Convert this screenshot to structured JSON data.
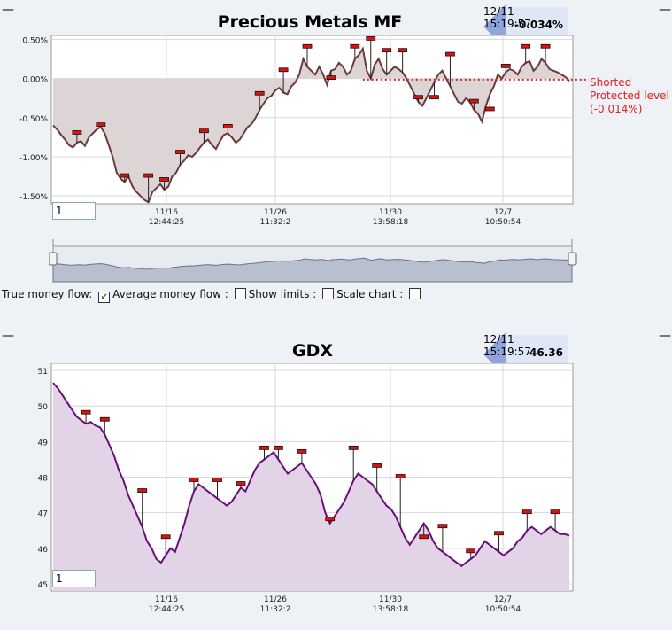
{
  "panels": {
    "mf": {
      "title": "Precious Metals MF",
      "badge_time": "12/11 15:19:57",
      "badge_value": "-0.034%",
      "input_value": "1",
      "annotation": [
        "Shorted",
        "Protected level",
        "(-0.014%)"
      ]
    },
    "gdx": {
      "title": "GDX",
      "badge_time": "12/11 15:19:57",
      "badge_value": "46.36",
      "input_value": "1"
    }
  },
  "controls": {
    "true_money_flow": "True money flow:",
    "average_money_flow": "Average money flow :",
    "show_limits": "Show limits :",
    "scale_chart": "Scale chart :",
    "true_money_flow_checked": true
  },
  "colors": {
    "mf_line": "#6b3a3a",
    "mf_fill": "#ddd5d5",
    "gdx_line": "#6a0d7a",
    "gdx_fill": "#e2d4e6",
    "protected_level": "#e02020",
    "marker": "#e01010"
  },
  "chart_data": [
    {
      "type": "area",
      "title": "Precious Metals MF",
      "yticks": [
        "0.50%",
        "0.00%",
        "-0.50%",
        "-1.00%",
        "-1.50%"
      ],
      "ylim": [
        -1.6,
        0.55
      ],
      "xticks": [
        {
          "date": "11/16",
          "time": "12:44:25"
        },
        {
          "date": "11/26",
          "time": "11:32:2"
        },
        {
          "date": "11/30",
          "time": "13:58:18"
        },
        {
          "date": "12/7",
          "time": "10:50:54"
        }
      ],
      "protected_level": -0.014,
      "values": [
        -0.6,
        -0.65,
        -0.72,
        -0.78,
        -0.85,
        -0.88,
        -0.82,
        -0.8,
        -0.86,
        -0.75,
        -0.7,
        -0.65,
        -0.62,
        -0.7,
        -0.85,
        -1.0,
        -1.2,
        -1.28,
        -1.32,
        -1.25,
        -1.38,
        -1.45,
        -1.5,
        -1.55,
        -1.58,
        -1.45,
        -1.4,
        -1.35,
        -1.42,
        -1.38,
        -1.25,
        -1.2,
        -1.1,
        -1.05,
        -0.98,
        -1.0,
        -0.95,
        -0.88,
        -0.82,
        -0.78,
        -0.85,
        -0.9,
        -0.8,
        -0.72,
        -0.7,
        -0.75,
        -0.82,
        -0.78,
        -0.7,
        -0.62,
        -0.58,
        -0.5,
        -0.4,
        -0.32,
        -0.25,
        -0.22,
        -0.15,
        -0.12,
        -0.18,
        -0.2,
        -0.1,
        -0.05,
        0.05,
        0.25,
        0.15,
        0.1,
        0.05,
        0.15,
        0.05,
        -0.08,
        0.1,
        0.12,
        0.2,
        0.15,
        0.05,
        0.1,
        0.25,
        0.3,
        0.38,
        0.1,
        0.0,
        0.18,
        0.25,
        0.12,
        0.05,
        0.1,
        0.15,
        0.12,
        0.08,
        0.0,
        -0.1,
        -0.2,
        -0.3,
        -0.35,
        -0.25,
        -0.15,
        -0.05,
        0.05,
        0.1,
        0.0,
        -0.1,
        -0.2,
        -0.3,
        -0.32,
        -0.25,
        -0.3,
        -0.4,
        -0.45,
        -0.55,
        -0.35,
        -0.2,
        -0.1,
        0.05,
        0.0,
        0.08,
        0.12,
        0.1,
        0.05,
        0.15,
        0.2,
        0.22,
        0.1,
        0.15,
        0.25,
        0.2,
        0.12,
        0.1,
        0.08,
        0.05,
        0.02,
        -0.03
      ],
      "markers": [
        {
          "i": 6,
          "v": -0.7
        },
        {
          "i": 12,
          "v": -0.6
        },
        {
          "i": 18,
          "v": -1.25
        },
        {
          "i": 24,
          "v": -1.25
        },
        {
          "i": 28,
          "v": -1.3
        },
        {
          "i": 32,
          "v": -0.95
        },
        {
          "i": 38,
          "v": -0.68
        },
        {
          "i": 44,
          "v": -0.62
        },
        {
          "i": 52,
          "v": -0.2
        },
        {
          "i": 58,
          "v": 0.1
        },
        {
          "i": 64,
          "v": 0.4
        },
        {
          "i": 70,
          "v": 0.0
        },
        {
          "i": 76,
          "v": 0.4
        },
        {
          "i": 80,
          "v": 0.5
        },
        {
          "i": 84,
          "v": 0.35
        },
        {
          "i": 88,
          "v": 0.35
        },
        {
          "i": 92,
          "v": -0.25
        },
        {
          "i": 96,
          "v": -0.25
        },
        {
          "i": 100,
          "v": 0.3
        },
        {
          "i": 106,
          "v": -0.3
        },
        {
          "i": 110,
          "v": -0.4
        },
        {
          "i": 114,
          "v": 0.15
        },
        {
          "i": 119,
          "v": 0.4
        },
        {
          "i": 124,
          "v": 0.4
        }
      ]
    },
    {
      "type": "area",
      "title": "GDX",
      "yticks": [
        "51",
        "50",
        "49",
        "48",
        "47",
        "46",
        "45"
      ],
      "ylim": [
        44.8,
        51.2
      ],
      "xticks": [
        {
          "date": "11/16",
          "time": "12:44:25"
        },
        {
          "date": "11/26",
          "time": "11:32:2"
        },
        {
          "date": "11/30",
          "time": "13:58:18"
        },
        {
          "date": "12/7",
          "time": "10:50:54"
        }
      ],
      "values": [
        50.65,
        50.5,
        50.3,
        50.1,
        49.9,
        49.7,
        49.6,
        49.5,
        49.55,
        49.45,
        49.4,
        49.2,
        48.9,
        48.6,
        48.2,
        47.9,
        47.5,
        47.2,
        46.9,
        46.6,
        46.2,
        46.0,
        45.7,
        45.6,
        45.8,
        46.0,
        45.9,
        46.3,
        46.7,
        47.2,
        47.6,
        47.8,
        47.7,
        47.6,
        47.5,
        47.4,
        47.3,
        47.2,
        47.3,
        47.5,
        47.7,
        47.6,
        47.9,
        48.2,
        48.4,
        48.5,
        48.6,
        48.7,
        48.5,
        48.3,
        48.1,
        48.2,
        48.3,
        48.4,
        48.2,
        48.0,
        47.8,
        47.5,
        47.0,
        46.7,
        46.9,
        47.1,
        47.3,
        47.6,
        47.9,
        48.1,
        48.0,
        47.9,
        47.8,
        47.6,
        47.4,
        47.2,
        47.1,
        46.9,
        46.6,
        46.3,
        46.1,
        46.3,
        46.5,
        46.7,
        46.5,
        46.2,
        46.0,
        45.9,
        45.8,
        45.7,
        45.6,
        45.5,
        45.6,
        45.7,
        45.8,
        46.0,
        46.2,
        46.1,
        46.0,
        45.9,
        45.8,
        45.9,
        46.0,
        46.2,
        46.3,
        46.5,
        46.6,
        46.5,
        46.4,
        46.5,
        46.6,
        46.5,
        46.4,
        46.4,
        46.36
      ],
      "markers": [
        {
          "i": 7,
          "v": 49.8
        },
        {
          "i": 11,
          "v": 49.6
        },
        {
          "i": 19,
          "v": 47.6
        },
        {
          "i": 24,
          "v": 46.3
        },
        {
          "i": 30,
          "v": 47.9
        },
        {
          "i": 35,
          "v": 47.9
        },
        {
          "i": 40,
          "v": 47.8
        },
        {
          "i": 45,
          "v": 48.8
        },
        {
          "i": 48,
          "v": 48.8
        },
        {
          "i": 53,
          "v": 48.7
        },
        {
          "i": 59,
          "v": 46.8
        },
        {
          "i": 64,
          "v": 48.8
        },
        {
          "i": 69,
          "v": 48.3
        },
        {
          "i": 74,
          "v": 48.0
        },
        {
          "i": 79,
          "v": 46.3
        },
        {
          "i": 83,
          "v": 46.6
        },
        {
          "i": 89,
          "v": 45.9
        },
        {
          "i": 95,
          "v": 46.4
        },
        {
          "i": 101,
          "v": 47.0
        },
        {
          "i": 107,
          "v": 47.0
        }
      ]
    }
  ]
}
